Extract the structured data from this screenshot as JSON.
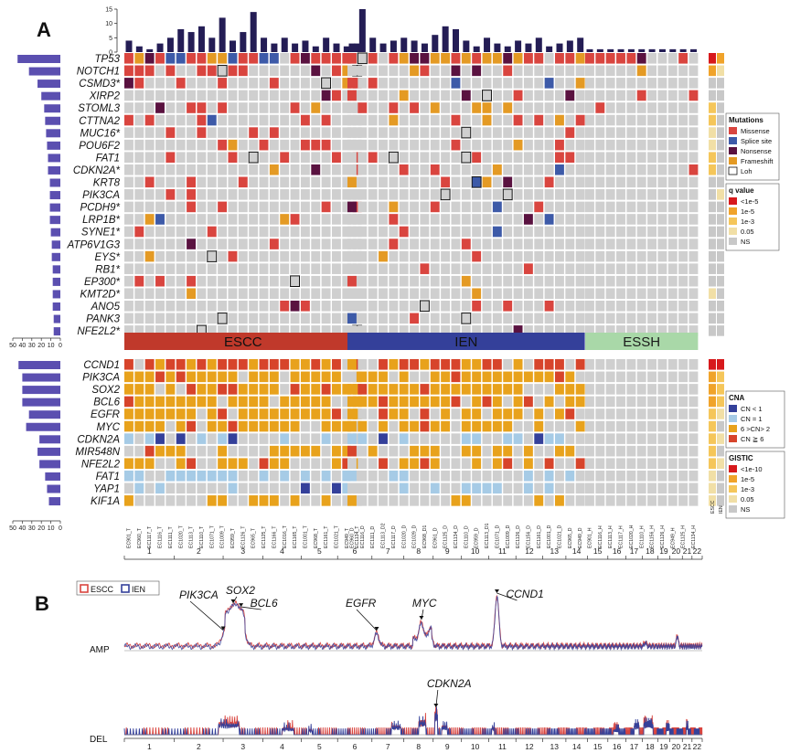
{
  "panel_a": {
    "label": "A",
    "top_counts_axis": [
      "15",
      "10",
      "5",
      "0"
    ],
    "left_axis_top": [
      "50",
      "40",
      "30",
      "20",
      "10",
      "0"
    ],
    "left_axis_bottom": [
      "50",
      "40",
      "30",
      "20",
      "10",
      "0"
    ],
    "mut_genes": [
      "TP53",
      "NOTCH1",
      "CSMD3*",
      "XIRP2",
      "STOML3",
      "CTTNA2",
      "MUC16*",
      "POU6F2",
      "FAT1",
      "CDKN2A*",
      "KRT8",
      "PIK3CA",
      "PCDH9*",
      "LRP1B*",
      "SYNE1*",
      "ATP6V1G3",
      "EYS*",
      "RB1*",
      "EP300*",
      "KMT2D*",
      "ANO5",
      "PANK3",
      "NFE2L2*"
    ],
    "mut_freq": [
      45,
      33,
      24,
      20,
      17,
      16,
      15,
      14,
      13,
      13,
      11,
      11,
      11,
      11,
      10,
      9,
      9,
      8,
      8,
      8,
      8,
      7,
      7
    ],
    "cna_genes": [
      "CCND1",
      "PIK3CA",
      "SOX2",
      "BCL6",
      "EGFR",
      "MYC",
      "CDKN2A",
      "MIR548N",
      "NFE2L2",
      "FAT1",
      "YAP1",
      "KIF1A"
    ],
    "cna_freq": [
      44,
      40,
      40,
      40,
      33,
      36,
      22,
      24,
      22,
      16,
      14,
      12
    ],
    "groups": [
      {
        "label": "ESCC",
        "color": "#c0392b"
      },
      {
        "label": "IEN",
        "color": "#34409a"
      },
      {
        "label": "ESSH",
        "color": "#a9d8a8"
      }
    ],
    "escc_samples": [
      "EC901_T",
      "EC960_T",
      "EC1117_T",
      "EC1116_T",
      "EC1111_T",
      "EC1020_T",
      "EC1113_T",
      "EC1110_T",
      "EC1071_T",
      "EC1009_T",
      "EC959_T",
      "EC1126_T",
      "EC965_T",
      "EC1125_T",
      "EC1166_T",
      "EC1016_T",
      "EC1165_T",
      "EC1001_T",
      "EC968_T",
      "EC1161_T",
      "EC1021_T",
      "EC949_T",
      "EC1134_T"
    ],
    "ien_samples": [
      "EC960_D",
      "EC1116_D",
      "EC1111_D",
      "EC1113_D2",
      "EC1117_D",
      "EC1020_D",
      "EC1029_D",
      "EC968_D1",
      "EC961_D",
      "EC1125_D",
      "EC1134_D",
      "EC1110_D",
      "EC959_D",
      "EC1113_D1",
      "EC1071_D",
      "EC1009_D",
      "EC1126_D",
      "EC1156_D",
      "EC1161_D",
      "EC1001_D",
      "EC1021_D",
      "EC965_D",
      "EC949_D"
    ],
    "essh_samples": [
      "EC901_H",
      "EC1116_H",
      "EC1113_H",
      "EC1117_H",
      "EC1020_H",
      "EC1110_H",
      "EC1156_H",
      "EC1126_H",
      "EC949_H",
      "EC1125_H",
      "EC1134_H"
    ],
    "qcols": [
      "ESCC",
      "IEN"
    ],
    "legend_mut": {
      "title": "Mutations",
      "items": [
        {
          "label": "Missense",
          "color": "#d9453f"
        },
        {
          "label": "Splice site",
          "color": "#3d5aa8"
        },
        {
          "label": "Nonsense",
          "color": "#5a1240"
        },
        {
          "label": "Frameshift",
          "color": "#e49a24"
        },
        {
          "label": "Loh",
          "color": "#ffffff"
        }
      ]
    },
    "legend_q": {
      "title": "q value",
      "items": [
        {
          "label": "<1e-5",
          "color": "#d7191c"
        },
        {
          "label": "1e-5",
          "color": "#f0a32a"
        },
        {
          "label": "1e-3",
          "color": "#f5c65a"
        },
        {
          "label": "0.05",
          "color": "#f1dfa6"
        },
        {
          "label": "NS",
          "color": "#c8c8c8"
        }
      ]
    },
    "legend_cna": {
      "title": "CNA",
      "items": [
        {
          "label": "CN < 1",
          "color": "#34409a"
        },
        {
          "label": "CN = 1",
          "color": "#a6cbe6"
        },
        {
          "label": "6 >CN> 2",
          "color": "#e8a21c"
        },
        {
          "label": "CN ≧ 6",
          "color": "#d7442b"
        }
      ]
    },
    "legend_gistic": {
      "title": "GISTIC",
      "items": [
        {
          "label": "<1e-10",
          "color": "#d7191c"
        },
        {
          "label": "1e-5",
          "color": "#f0a32a"
        },
        {
          "label": "1e-3",
          "color": "#f5c65a"
        },
        {
          "label": "0.05",
          "color": "#f1dfa6"
        },
        {
          "label": "NS",
          "color": "#c8c8c8"
        }
      ]
    },
    "colors": {
      "empty": "#cfcfcf",
      "missense": "#d9453f",
      "splice": "#3d5aa8",
      "nonsense": "#5a1240",
      "frameshift": "#e49a24",
      "cn_lt1": "#34409a",
      "cn_eq1": "#a6cbe6",
      "cn_gain": "#e8a21c",
      "cn_amp": "#d7442b",
      "bar": "#241d55",
      "leftbar": "#5b4fb0"
    }
  },
  "chart_data": [
    {
      "type": "heatmap",
      "title": "",
      "rows": [
        "TP53",
        "NOTCH1",
        "CSMD3*",
        "XIRP2",
        "STOML3",
        "CTTNA2",
        "MUC16*",
        "POU6F2",
        "FAT1",
        "CDKN2A*",
        "KRT8",
        "PIK3CA",
        "PCDH9*",
        "LRP1B*",
        "SYNE1*",
        "ATP6V1G3",
        "EYS*",
        "RB1*",
        "EP300*",
        "KMT2D*",
        "ANO5",
        "PANK3",
        "NFE2L2*"
      ],
      "groups": [
        "ESCC",
        "IEN",
        "ESSH"
      ],
      "top_mutation_counts": {
        "ESCC": [
          4,
          2,
          1,
          3,
          5,
          8,
          7,
          9,
          5,
          12,
          4,
          7,
          14,
          5,
          3,
          5,
          3,
          4,
          2,
          5,
          3,
          2,
          3
        ],
        "IEN": [
          3,
          15,
          5,
          3,
          4,
          5,
          4,
          3,
          6,
          9,
          8,
          4,
          2,
          5,
          3,
          2,
          4,
          3,
          5,
          2,
          3,
          4,
          5
        ],
        "ESSH": [
          1,
          1,
          1,
          1,
          1,
          1,
          1,
          1,
          1,
          1,
          1
        ]
      }
    },
    {
      "type": "heatmap",
      "title": "",
      "rows": [
        "CCND1",
        "PIK3CA",
        "SOX2",
        "BCL6",
        "EGFR",
        "MYC",
        "CDKN2A",
        "MIR548N",
        "NFE2L2",
        "FAT1",
        "YAP1",
        "KIF1A"
      ],
      "categories": [
        "CN < 1",
        "CN = 1",
        "6 >CN> 2",
        "CN ≧ 6"
      ]
    },
    {
      "type": "line",
      "title": "",
      "series": [
        {
          "name": "ESCC"
        },
        {
          "name": "IEN"
        }
      ],
      "tracks": [
        "AMP",
        "DEL"
      ],
      "chromosomes": [
        "1",
        "2",
        "3",
        "4",
        "5",
        "6",
        "7",
        "8",
        "9",
        "10",
        "11",
        "12",
        "13",
        "14",
        "15",
        "16",
        "17",
        "18",
        "19",
        "20",
        "21",
        "22"
      ],
      "annotations": [
        "PIK3CA",
        "SOX2",
        "BCL6",
        "EGFR",
        "MYC",
        "CCND1",
        "CDKN2A"
      ]
    }
  ],
  "panel_b": {
    "label": "B",
    "track_amp": "AMP",
    "track_del": "DEL",
    "legend": [
      {
        "label": "ESCC",
        "color": "#d9453f"
      },
      {
        "label": "IEN",
        "color": "#34409a"
      }
    ],
    "chromosomes": [
      "1",
      "2",
      "3",
      "4",
      "5",
      "6",
      "7",
      "8",
      "9",
      "10",
      "11",
      "12",
      "13",
      "14",
      "15",
      "16",
      "17",
      "18",
      "19",
      "20",
      "21",
      "22"
    ],
    "amp_labels": [
      {
        "text": "PIK3CA",
        "chrom": 3.0,
        "x_off": -48,
        "y": 655
      },
      {
        "text": "SOX2",
        "chrom": 3.25,
        "x_off": -8,
        "y": 650
      },
      {
        "text": "BCL6",
        "chrom": 3.45,
        "x_off": 10,
        "y": 664
      },
      {
        "text": "EGFR",
        "chrom": 7.15,
        "x_off": -34,
        "y": 664
      },
      {
        "text": "MYC",
        "chrom": 8.6,
        "x_off": -10,
        "y": 664
      },
      {
        "text": "CCND1",
        "chrom": 11.3,
        "x_off": 10,
        "y": 654
      }
    ],
    "del_labels": [
      {
        "text": "CDKN2A",
        "chrom": 9.1,
        "x_off": -10,
        "y": 752
      }
    ]
  }
}
